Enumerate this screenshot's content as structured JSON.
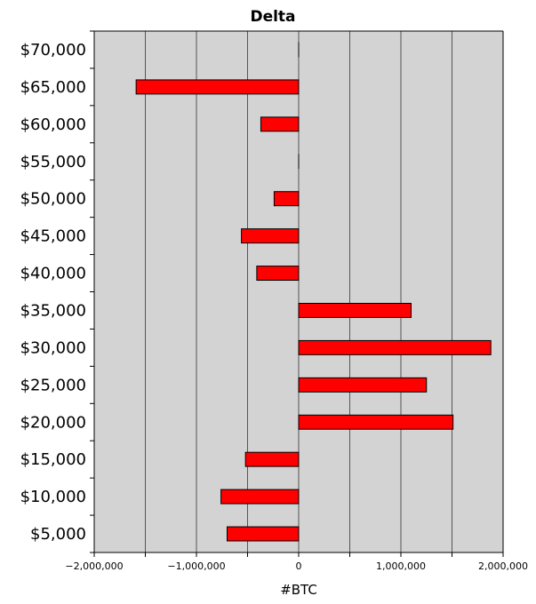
{
  "chart_data": {
    "type": "bar",
    "orientation": "horizontal",
    "title": "Delta",
    "xlabel": "#BTC",
    "ylabel": "",
    "xlim": [
      -2000000,
      2000000
    ],
    "x_ticks": [
      -2000000,
      -1500000,
      -1000000,
      -500000,
      0,
      500000,
      1000000,
      1500000,
      2000000
    ],
    "x_tick_labels": [
      "−2,000,000",
      "",
      "−1,000,000",
      "",
      "0",
      "",
      "1,000,000",
      "",
      "2,000,000"
    ],
    "categories": [
      "$5,000",
      "$10,000",
      "$15,000",
      "$20,000",
      "$25,000",
      "$30,000",
      "$35,000",
      "$40,000",
      "$45,000",
      "$50,000",
      "$55,000",
      "$60,000",
      "$65,000",
      "$70,000"
    ],
    "values": [
      -700000,
      -760000,
      -520000,
      1510000,
      1250000,
      1880000,
      1100000,
      -410000,
      -560000,
      -240000,
      0,
      -370000,
      -1590000,
      0
    ],
    "grid": true,
    "legend": "none",
    "bar_color": "#ff0000",
    "plot_background": "#d3d3d3"
  }
}
